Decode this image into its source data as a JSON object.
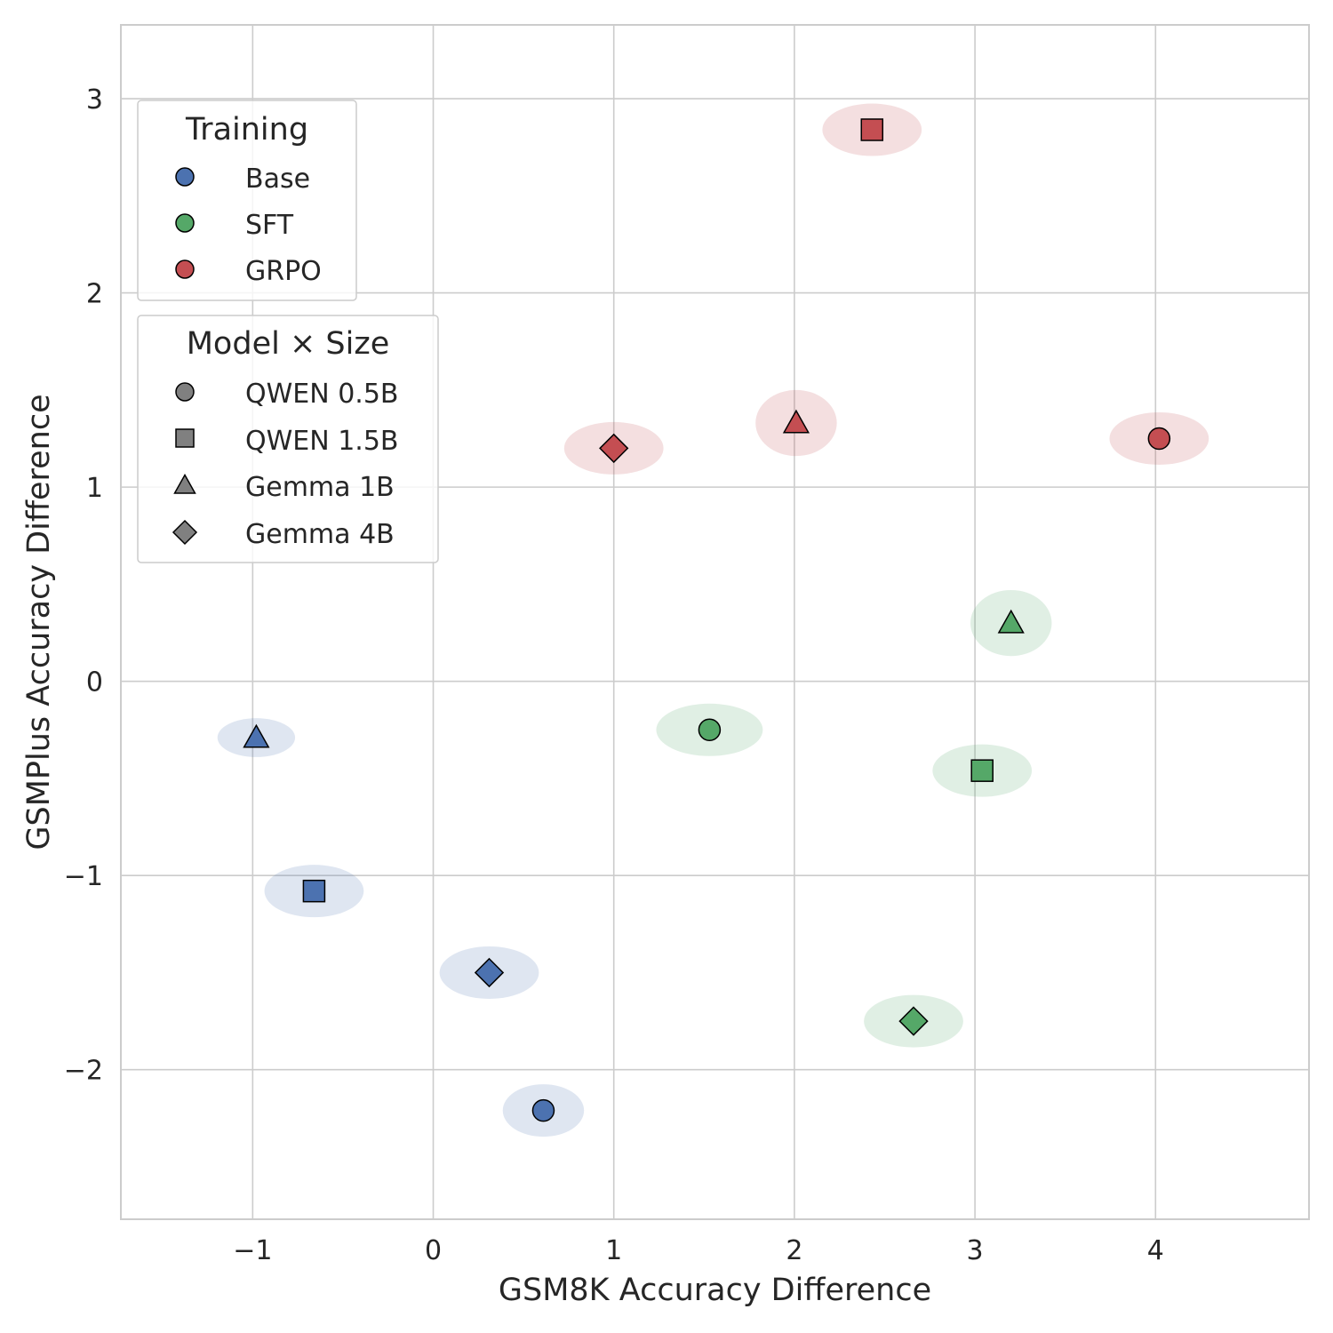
{
  "chart_data": {
    "type": "scatter",
    "xlabel": "GSM8K Accuracy Difference",
    "ylabel": "GSMPlus Accuracy Difference",
    "xlim": [
      -1.73,
      4.85
    ],
    "ylim": [
      -2.77,
      3.38
    ],
    "xticks": [
      -1,
      0,
      1,
      2,
      3,
      4
    ],
    "yticks": [
      -2,
      -1,
      0,
      1,
      2,
      3
    ],
    "xtick_labels": [
      "−1",
      "0",
      "1",
      "2",
      "3",
      "4"
    ],
    "ytick_labels": [
      "−2",
      "−1",
      "0",
      "1",
      "2",
      "3"
    ],
    "grid": true,
    "colors": {
      "Base": "#4c72b0",
      "SFT": "#55a868",
      "GRPO": "#c44e52"
    },
    "points": [
      {
        "training": "Base",
        "model": "QWEN 0.5B",
        "x": 0.61,
        "y": -2.21,
        "sx": 0.45,
        "sy": 0.27
      },
      {
        "training": "Base",
        "model": "QWEN 1.5B",
        "x": -0.66,
        "y": -1.08,
        "sx": 0.55,
        "sy": 0.27
      },
      {
        "training": "Base",
        "model": "Gemma 1B",
        "x": -0.98,
        "y": -0.29,
        "sx": 0.43,
        "sy": 0.2
      },
      {
        "training": "Base",
        "model": "Gemma 4B",
        "x": 0.31,
        "y": -1.5,
        "sx": 0.55,
        "sy": 0.27
      },
      {
        "training": "SFT",
        "model": "QWEN 0.5B",
        "x": 1.53,
        "y": -0.25,
        "sx": 0.59,
        "sy": 0.27
      },
      {
        "training": "SFT",
        "model": "QWEN 1.5B",
        "x": 3.04,
        "y": -0.46,
        "sx": 0.55,
        "sy": 0.27
      },
      {
        "training": "SFT",
        "model": "Gemma 1B",
        "x": 3.2,
        "y": 0.3,
        "sx": 0.45,
        "sy": 0.34
      },
      {
        "training": "SFT",
        "model": "Gemma 4B",
        "x": 2.66,
        "y": -1.75,
        "sx": 0.55,
        "sy": 0.27
      },
      {
        "training": "GRPO",
        "model": "QWEN 0.5B",
        "x": 4.02,
        "y": 1.25,
        "sx": 0.55,
        "sy": 0.27
      },
      {
        "training": "GRPO",
        "model": "QWEN 1.5B",
        "x": 2.43,
        "y": 2.84,
        "sx": 0.55,
        "sy": 0.27
      },
      {
        "training": "GRPO",
        "model": "Gemma 1B",
        "x": 2.01,
        "y": 1.33,
        "sx": 0.45,
        "sy": 0.34
      },
      {
        "training": "GRPO",
        "model": "Gemma 4B",
        "x": 1.0,
        "y": 1.2,
        "sx": 0.55,
        "sy": 0.27
      }
    ],
    "legends": [
      {
        "title": "Training",
        "placement": "upper-left",
        "entries": [
          {
            "label": "Base",
            "marker": "circle",
            "color": "#4c72b0"
          },
          {
            "label": "SFT",
            "marker": "circle",
            "color": "#55a868"
          },
          {
            "label": "GRPO",
            "marker": "circle",
            "color": "#c44e52"
          }
        ]
      },
      {
        "title": "Model × Size",
        "placement": "upper-left",
        "entries": [
          {
            "label": "QWEN 0.5B",
            "marker": "circle",
            "color": "#808080"
          },
          {
            "label": "QWEN 1.5B",
            "marker": "square",
            "color": "#808080"
          },
          {
            "label": "Gemma 1B",
            "marker": "triangle",
            "color": "#808080"
          },
          {
            "label": "Gemma 4B",
            "marker": "diamond",
            "color": "#808080"
          }
        ]
      }
    ]
  }
}
